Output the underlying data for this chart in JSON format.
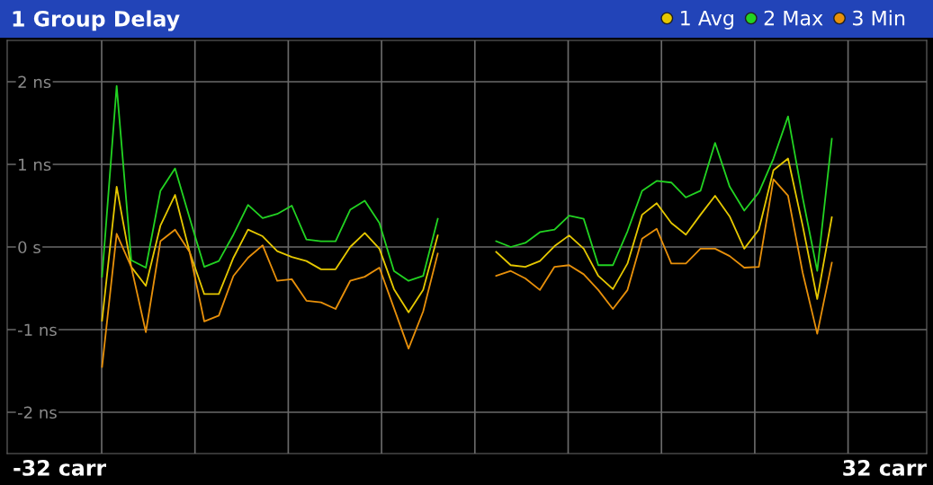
{
  "chart_data": {
    "type": "line",
    "title": "1 Group Delay",
    "legend": "top right",
    "grid": true,
    "line_style": "solid",
    "marker": "none",
    "categories": [
      null,
      null,
      null,
      null,
      null,
      null,
      null,
      null,
      null,
      null,
      null,
      null,
      null,
      null,
      null,
      null,
      null,
      null,
      null,
      null,
      null,
      null,
      null,
      null,
      null,
      null,
      null,
      null,
      null,
      null,
      null,
      null,
      null,
      null,
      null,
      null,
      null,
      null,
      null,
      null,
      null,
      null,
      null,
      null,
      null,
      null,
      null,
      null,
      null,
      null,
      null,
      null,
      null,
      null,
      null,
      null,
      null,
      null,
      null,
      null,
      null,
      null,
      null
    ],
    "ylim": [
      -2.5,
      2.5
    ],
    "yticks": [
      {
        "value": -2,
        "label": "-2 ns"
      },
      {
        "value": -1,
        "label": "-1 ns"
      },
      {
        "value": 0,
        "label": "0 s"
      },
      {
        "value": 1,
        "label": "1 ns"
      },
      {
        "value": 2,
        "label": "2 ns"
      }
    ],
    "annotations": [
      "-32 carr",
      "32 carr"
    ],
    "series": [
      {
        "name": "1 Avg",
        "color": "#e6c800",
        "values": [
          null,
          null,
          null,
          null,
          null,
          null,
          -0.89,
          0.73,
          -0.24,
          -0.47,
          0.26,
          0.63,
          -0.06,
          -0.57,
          -0.57,
          -0.13,
          0.21,
          0.13,
          -0.05,
          -0.12,
          -0.17,
          -0.27,
          -0.27,
          0,
          0.17,
          -0.02,
          -0.51,
          -0.79,
          -0.52,
          0.14,
          null,
          null,
          null,
          -0.06,
          -0.22,
          -0.24,
          -0.17,
          0.01,
          0.14,
          -0.02,
          -0.35,
          -0.51,
          -0.2,
          0.39,
          0.53,
          0.29,
          0.15,
          0.39,
          0.62,
          0.37,
          -0.02,
          0.21,
          0.93,
          1.07,
          0.26,
          -0.63,
          0.36,
          null,
          null,
          null,
          null,
          null,
          null
        ]
      },
      {
        "name": "2 Max",
        "color": "#22d322",
        "values": [
          null,
          null,
          null,
          null,
          null,
          null,
          -0.36,
          1.95,
          -0.16,
          -0.25,
          0.68,
          0.95,
          0.35,
          -0.24,
          -0.17,
          0.15,
          0.51,
          0.35,
          0.4,
          0.5,
          0.09,
          0.07,
          0.07,
          0.45,
          0.56,
          0.29,
          -0.29,
          -0.41,
          -0.35,
          0.34,
          null,
          null,
          null,
          0.07,
          0,
          0.05,
          0.18,
          0.21,
          0.38,
          0.34,
          -0.22,
          -0.22,
          0.19,
          0.68,
          0.8,
          0.78,
          0.6,
          0.68,
          1.26,
          0.73,
          0.44,
          0.66,
          1.07,
          1.58,
          0.6,
          -0.29,
          1.31,
          null,
          null,
          null,
          null,
          null,
          null
        ]
      },
      {
        "name": "3 Min",
        "color": "#e8900a",
        "values": [
          null,
          null,
          null,
          null,
          null,
          null,
          -1.45,
          0.16,
          -0.24,
          -1.03,
          0.07,
          0.21,
          -0.06,
          -0.9,
          -0.83,
          -0.35,
          -0.13,
          0.02,
          -0.41,
          -0.39,
          -0.65,
          -0.67,
          -0.75,
          -0.41,
          -0.36,
          -0.25,
          -0.74,
          -1.23,
          -0.78,
          -0.08,
          null,
          null,
          null,
          -0.35,
          -0.29,
          -0.38,
          -0.52,
          -0.24,
          -0.22,
          -0.33,
          -0.52,
          -0.75,
          -0.52,
          0.1,
          0.22,
          -0.2,
          -0.2,
          -0.02,
          -0.02,
          -0.11,
          -0.25,
          -0.24,
          0.82,
          0.62,
          -0.31,
          -1.05,
          -0.19,
          null,
          null,
          null,
          null,
          null,
          null
        ]
      }
    ]
  }
}
